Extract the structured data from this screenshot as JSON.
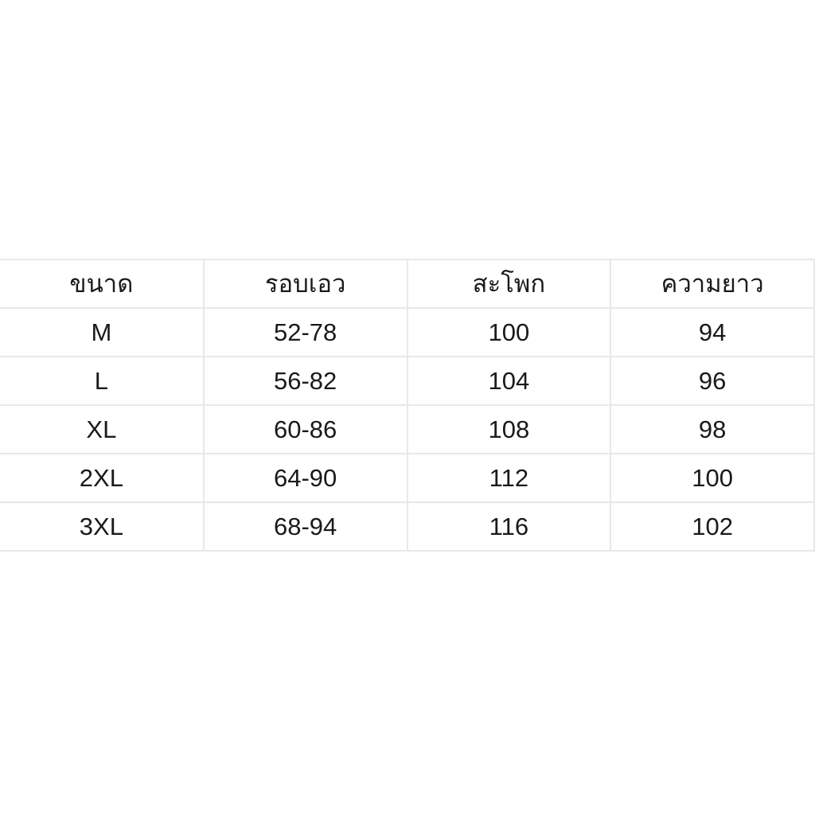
{
  "chart_data": {
    "type": "table",
    "title": "",
    "columns": [
      "ขนาด",
      "รอบเอว",
      "สะโพก",
      "ความยาว"
    ],
    "column_meanings": [
      "size",
      "waist",
      "hip",
      "length"
    ],
    "rows": [
      [
        "M",
        "52-78",
        "100",
        "94"
      ],
      [
        "L",
        "56-82",
        "104",
        "96"
      ],
      [
        "XL",
        "60-86",
        "108",
        "98"
      ],
      [
        "2XL",
        "64-90",
        "112",
        "100"
      ],
      [
        "3XL",
        "68-94",
        "116",
        "102"
      ]
    ],
    "layout": {
      "grid": "on",
      "text_align": "center",
      "header_row": true
    }
  },
  "colors": {
    "grid": "#e7e8ec",
    "text": "#1a1a1a",
    "background": "#ffffff"
  }
}
